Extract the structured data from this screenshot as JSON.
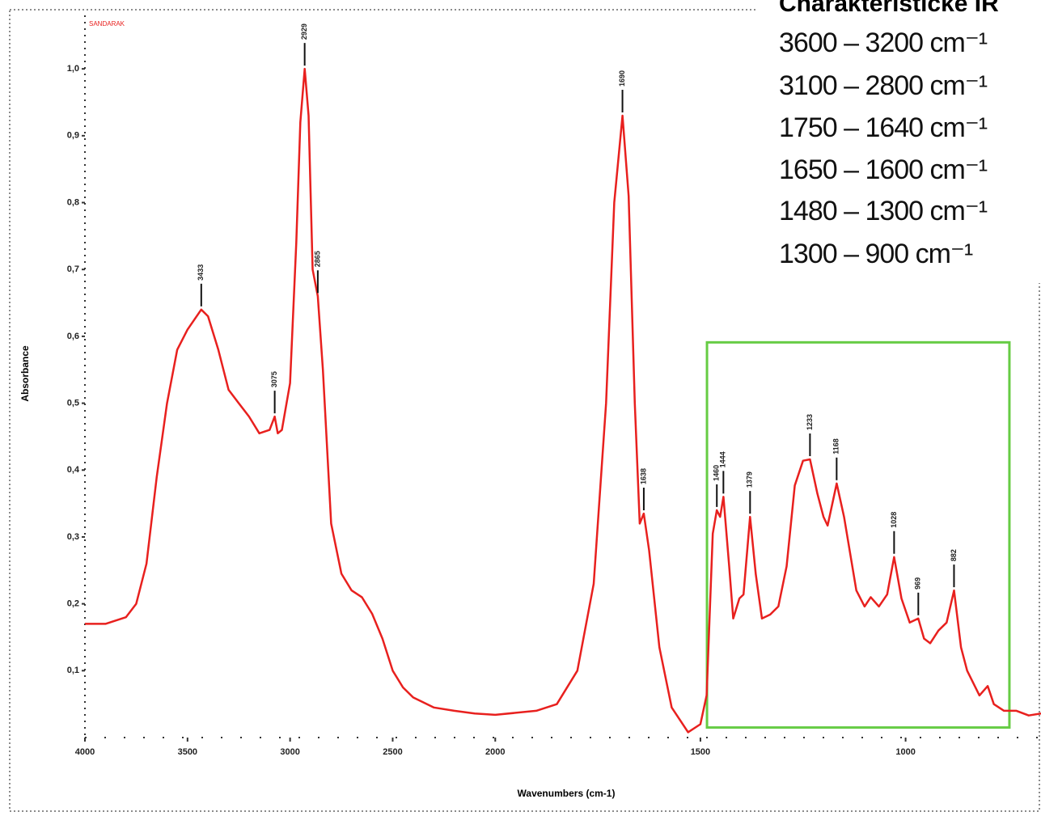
{
  "chart_data": {
    "type": "line",
    "sample_label": "SANDARAK",
    "side_title": "Charakteristicke IR",
    "ranges": [
      "3600 – 3200 cm⁻¹",
      "3100 – 2800 cm⁻¹",
      "1750 – 1640 cm⁻¹",
      "1650 – 1600 cm⁻¹",
      "1480 – 1300 cm⁻¹",
      "1300 – 900 cm⁻¹"
    ],
    "x_label": "Wavenumbers (cm-1)",
    "y_label": "Absorbance",
    "xlim": [
      4000,
      670
    ],
    "xscale": {
      "break": 2000,
      "factor": 2
    },
    "xticks": [
      4000,
      3500,
      3000,
      2500,
      2000,
      1500,
      1000
    ],
    "ylim": [
      0,
      1.08
    ],
    "yticks": [
      {
        "value": 0.1,
        "label": "0,1"
      },
      {
        "value": 0.2,
        "label": "0,2"
      },
      {
        "value": 0.3,
        "label": "0,3"
      },
      {
        "value": 0.4,
        "label": "0,4"
      },
      {
        "value": 0.5,
        "label": "0,5"
      },
      {
        "value": 0.6,
        "label": "0,6"
      },
      {
        "value": 0.7,
        "label": "0,7"
      },
      {
        "value": 0.8,
        "label": "0,8"
      },
      {
        "value": 0.9,
        "label": "0,9"
      },
      {
        "value": 1.0,
        "label": "1,0"
      }
    ],
    "x": [
      4000,
      3900,
      3800,
      3750,
      3700,
      3650,
      3600,
      3550,
      3500,
      3433,
      3400,
      3350,
      3300,
      3250,
      3200,
      3150,
      3100,
      3075,
      3060,
      3040,
      3000,
      2970,
      2950,
      2929,
      2910,
      2890,
      2865,
      2840,
      2800,
      2750,
      2700,
      2650,
      2600,
      2550,
      2500,
      2450,
      2400,
      2300,
      2200,
      2100,
      2000,
      1900,
      1850,
      1800,
      1760,
      1730,
      1710,
      1690,
      1675,
      1660,
      1648,
      1638,
      1625,
      1600,
      1570,
      1530,
      1500,
      1485,
      1470,
      1460,
      1452,
      1444,
      1430,
      1420,
      1405,
      1395,
      1379,
      1365,
      1350,
      1330,
      1310,
      1290,
      1270,
      1250,
      1233,
      1215,
      1200,
      1190,
      1168,
      1150,
      1120,
      1100,
      1085,
      1065,
      1045,
      1028,
      1010,
      990,
      969,
      955,
      940,
      920,
      900,
      882,
      865,
      850,
      820,
      800,
      785,
      760,
      730,
      700,
      670
    ],
    "series": [
      {
        "name": "SANDARAK",
        "color": "#e8201e",
        "values": [
          0.17,
          0.17,
          0.18,
          0.2,
          0.26,
          0.39,
          0.5,
          0.58,
          0.61,
          0.64,
          0.63,
          0.58,
          0.52,
          0.5,
          0.48,
          0.455,
          0.46,
          0.48,
          0.455,
          0.46,
          0.53,
          0.74,
          0.92,
          1.0,
          0.93,
          0.7,
          0.66,
          0.55,
          0.32,
          0.245,
          0.22,
          0.21,
          0.185,
          0.148,
          0.1,
          0.075,
          0.06,
          0.045,
          0.04,
          0.036,
          0.034,
          0.04,
          0.05,
          0.1,
          0.23,
          0.5,
          0.8,
          0.93,
          0.81,
          0.5,
          0.32,
          0.335,
          0.28,
          0.135,
          0.045,
          0.008,
          0.02,
          0.063,
          0.305,
          0.34,
          0.33,
          0.36,
          0.256,
          0.178,
          0.208,
          0.214,
          0.33,
          0.244,
          0.178,
          0.184,
          0.196,
          0.256,
          0.377,
          0.414,
          0.416,
          0.365,
          0.33,
          0.317,
          0.38,
          0.33,
          0.22,
          0.196,
          0.21,
          0.196,
          0.214,
          0.27,
          0.208,
          0.172,
          0.178,
          0.148,
          0.141,
          0.16,
          0.172,
          0.22,
          0.135,
          0.1,
          0.063,
          0.077,
          0.05,
          0.04,
          0.04,
          0.033,
          0.036
        ]
      }
    ],
    "peaks": [
      3433,
      3075,
      2929,
      2865,
      1690,
      1638,
      1460,
      1444,
      1379,
      1233,
      1168,
      1028,
      969,
      882
    ],
    "highlight_box": {
      "xlim": [
        1484,
        747
      ],
      "ylim": [
        0.015,
        0.591
      ],
      "color": "#66cc44"
    }
  }
}
